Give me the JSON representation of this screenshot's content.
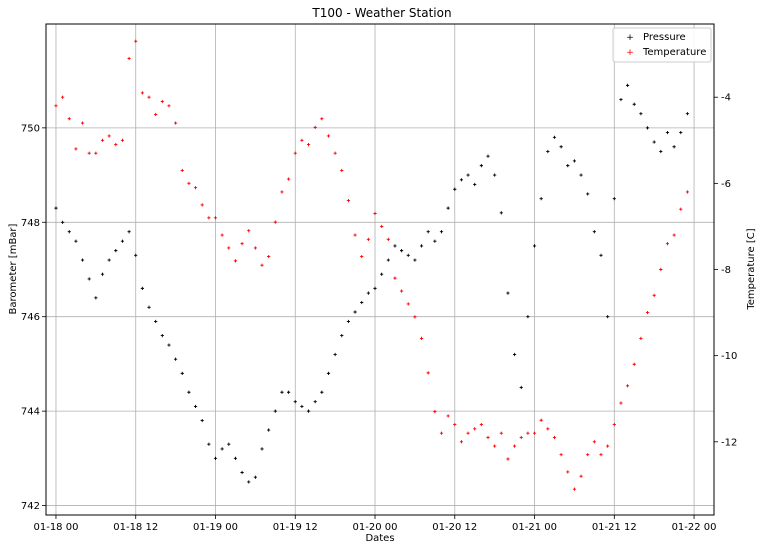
{
  "chart_data": {
    "type": "scatter",
    "title": "T100 - Weather Station",
    "xlabel": "Dates",
    "ylabel": "Barometer [mBar]",
    "ylabel_right": "Temperature [C]",
    "x_ticks": [
      "01-18 00",
      "01-18 12",
      "01-19 00",
      "01-19 12",
      "01-20 00",
      "01-20 12",
      "01-21 00",
      "01-21 12",
      "01-22 00"
    ],
    "xlim": [
      "01-17 22:30",
      "01-22 03:00"
    ],
    "ylim": [
      741.8,
      752.2
    ],
    "ylim_right": [
      -13.7,
      -2.3
    ],
    "y_ticks": [
      742,
      744,
      746,
      748,
      750
    ],
    "y_ticks_right": [
      -12,
      -10,
      -8,
      -6,
      -4
    ],
    "grid": true,
    "legend_position": "top-right",
    "series": [
      {
        "name": "Pressure",
        "axis": "left",
        "color": "#000000",
        "marker": "+",
        "points": [
          [
            "01-18 00:00",
            748.3
          ],
          [
            "01-18 01:00",
            748.0
          ],
          [
            "01-18 02:00",
            747.8
          ],
          [
            "01-18 03:00",
            747.6
          ],
          [
            "01-18 04:00",
            747.2
          ],
          [
            "01-18 05:00",
            746.8
          ],
          [
            "01-18 06:00",
            746.4
          ],
          [
            "01-18 07:00",
            746.9
          ],
          [
            "01-18 08:00",
            747.2
          ],
          [
            "01-18 09:00",
            747.4
          ],
          [
            "01-18 10:00",
            747.6
          ],
          [
            "01-18 11:00",
            747.8
          ],
          [
            "01-18 12:00",
            747.3
          ],
          [
            "01-18 13:00",
            746.6
          ],
          [
            "01-18 14:00",
            746.2
          ],
          [
            "01-18 15:00",
            745.9
          ],
          [
            "01-18 16:00",
            745.6
          ],
          [
            "01-18 17:00",
            745.4
          ],
          [
            "01-18 18:00",
            745.1
          ],
          [
            "01-18 19:00",
            744.8
          ],
          [
            "01-18 20:00",
            744.4
          ],
          [
            "01-18 21:00",
            744.1
          ],
          [
            "01-18 22:00",
            743.8
          ],
          [
            "01-18 23:00",
            743.3
          ],
          [
            "01-19 00:00",
            743.0
          ],
          [
            "01-19 01:00",
            743.2
          ],
          [
            "01-19 02:00",
            743.3
          ],
          [
            "01-19 03:00",
            743.0
          ],
          [
            "01-19 04:00",
            742.7
          ],
          [
            "01-19 05:00",
            742.5
          ],
          [
            "01-19 06:00",
            742.6
          ],
          [
            "01-19 07:00",
            743.2
          ],
          [
            "01-19 08:00",
            743.6
          ],
          [
            "01-19 09:00",
            744.0
          ],
          [
            "01-19 10:00",
            744.4
          ],
          [
            "01-19 11:00",
            744.4
          ],
          [
            "01-19 12:00",
            744.2
          ],
          [
            "01-19 13:00",
            744.1
          ],
          [
            "01-19 14:00",
            744.0
          ],
          [
            "01-19 15:00",
            744.2
          ],
          [
            "01-19 16:00",
            744.4
          ],
          [
            "01-19 17:00",
            744.8
          ],
          [
            "01-19 18:00",
            745.2
          ],
          [
            "01-19 19:00",
            745.6
          ],
          [
            "01-19 20:00",
            745.9
          ],
          [
            "01-19 21:00",
            746.1
          ],
          [
            "01-19 22:00",
            746.3
          ],
          [
            "01-19 23:00",
            746.5
          ],
          [
            "01-20 00:00",
            746.6
          ],
          [
            "01-20 01:00",
            746.9
          ],
          [
            "01-20 02:00",
            747.2
          ],
          [
            "01-20 03:00",
            747.5
          ],
          [
            "01-20 04:00",
            747.4
          ],
          [
            "01-20 05:00",
            747.3
          ],
          [
            "01-20 06:00",
            747.2
          ],
          [
            "01-20 07:00",
            747.5
          ],
          [
            "01-20 08:00",
            747.8
          ],
          [
            "01-20 09:00",
            747.6
          ],
          [
            "01-20 10:00",
            747.8
          ],
          [
            "01-20 11:00",
            748.3
          ],
          [
            "01-20 12:00",
            748.7
          ],
          [
            "01-20 13:00",
            748.9
          ],
          [
            "01-20 14:00",
            749.0
          ],
          [
            "01-20 15:00",
            748.8
          ],
          [
            "01-20 16:00",
            749.2
          ],
          [
            "01-20 17:00",
            749.4
          ],
          [
            "01-20 18:00",
            749.0
          ],
          [
            "01-20 19:00",
            748.2
          ],
          [
            "01-20 20:00",
            746.5
          ],
          [
            "01-20 21:00",
            745.2
          ],
          [
            "01-20 22:00",
            744.5
          ],
          [
            "01-20 23:00",
            746.0
          ],
          [
            "01-21 00:00",
            747.5
          ],
          [
            "01-21 01:00",
            748.5
          ],
          [
            "01-21 02:00",
            749.5
          ],
          [
            "01-21 03:00",
            749.8
          ],
          [
            "01-21 04:00",
            749.6
          ],
          [
            "01-21 05:00",
            749.2
          ],
          [
            "01-21 06:00",
            749.3
          ],
          [
            "01-21 07:00",
            749.0
          ],
          [
            "01-21 08:00",
            748.6
          ],
          [
            "01-21 09:00",
            747.8
          ],
          [
            "01-21 10:00",
            747.3
          ],
          [
            "01-21 11:00",
            746.0
          ],
          [
            "01-21 12:00",
            748.5
          ],
          [
            "01-21 13:00",
            750.6
          ],
          [
            "01-21 14:00",
            750.9
          ],
          [
            "01-21 15:00",
            750.5
          ],
          [
            "01-21 16:00",
            750.3
          ],
          [
            "01-21 17:00",
            750.0
          ],
          [
            "01-21 18:00",
            749.7
          ],
          [
            "01-21 19:00",
            749.5
          ],
          [
            "01-21 20:00",
            749.9
          ],
          [
            "01-21 21:00",
            749.6
          ],
          [
            "01-21 22:00",
            749.9
          ],
          [
            "01-21 23:00",
            750.3
          ]
        ]
      },
      {
        "name": "Temperature",
        "axis": "right",
        "color": "#ff0000",
        "marker": "+",
        "points": [
          [
            "01-18 00:00",
            -4.2
          ],
          [
            "01-18 01:00",
            -4.0
          ],
          [
            "01-18 02:00",
            -4.5
          ],
          [
            "01-18 03:00",
            -5.2
          ],
          [
            "01-18 04:00",
            -4.6
          ],
          [
            "01-18 05:00",
            -5.3
          ],
          [
            "01-18 06:00",
            -5.3
          ],
          [
            "01-18 07:00",
            -5.0
          ],
          [
            "01-18 08:00",
            -4.9
          ],
          [
            "01-18 09:00",
            -5.1
          ],
          [
            "01-18 10:00",
            -5.0
          ],
          [
            "01-18 11:00",
            -3.1
          ],
          [
            "01-18 12:00",
            -2.7
          ],
          [
            "01-18 13:00",
            -3.9
          ],
          [
            "01-18 14:00",
            -4.0
          ],
          [
            "01-18 15:00",
            -4.4
          ],
          [
            "01-18 16:00",
            -4.1
          ],
          [
            "01-18 17:00",
            -4.2
          ],
          [
            "01-18 18:00",
            -4.6
          ],
          [
            "01-18 19:00",
            -5.7
          ],
          [
            "01-18 20:00",
            -6.0
          ],
          [
            "01-18 21:00",
            -6.1
          ],
          [
            "01-18 22:00",
            -6.5
          ],
          [
            "01-18 23:00",
            -6.8
          ],
          [
            "01-19 00:00",
            -6.8
          ],
          [
            "01-19 01:00",
            -7.2
          ],
          [
            "01-19 02:00",
            -7.5
          ],
          [
            "01-19 03:00",
            -7.8
          ],
          [
            "01-19 04:00",
            -7.4
          ],
          [
            "01-19 05:00",
            -7.1
          ],
          [
            "01-19 06:00",
            -7.5
          ],
          [
            "01-19 07:00",
            -7.9
          ],
          [
            "01-19 08:00",
            -7.7
          ],
          [
            "01-19 09:00",
            -6.9
          ],
          [
            "01-19 10:00",
            -6.2
          ],
          [
            "01-19 11:00",
            -5.9
          ],
          [
            "01-19 12:00",
            -5.3
          ],
          [
            "01-19 13:00",
            -5.0
          ],
          [
            "01-19 14:00",
            -5.1
          ],
          [
            "01-19 15:00",
            -4.7
          ],
          [
            "01-19 16:00",
            -4.5
          ],
          [
            "01-19 17:00",
            -4.9
          ],
          [
            "01-19 18:00",
            -5.3
          ],
          [
            "01-19 19:00",
            -5.7
          ],
          [
            "01-19 20:00",
            -6.4
          ],
          [
            "01-19 21:00",
            -7.2
          ],
          [
            "01-19 22:00",
            -7.7
          ],
          [
            "01-19 23:00",
            -7.3
          ],
          [
            "01-20 00:00",
            -6.7
          ],
          [
            "01-20 01:00",
            -7.0
          ],
          [
            "01-20 02:00",
            -7.3
          ],
          [
            "01-20 03:00",
            -8.2
          ],
          [
            "01-20 04:00",
            -8.5
          ],
          [
            "01-20 05:00",
            -8.8
          ],
          [
            "01-20 06:00",
            -9.1
          ],
          [
            "01-20 07:00",
            -9.6
          ],
          [
            "01-20 08:00",
            -10.4
          ],
          [
            "01-20 09:00",
            -11.3
          ],
          [
            "01-20 10:00",
            -11.8
          ],
          [
            "01-20 11:00",
            -11.4
          ],
          [
            "01-20 12:00",
            -11.6
          ],
          [
            "01-20 13:00",
            -12.0
          ],
          [
            "01-20 14:00",
            -11.8
          ],
          [
            "01-20 15:00",
            -11.7
          ],
          [
            "01-20 16:00",
            -11.6
          ],
          [
            "01-20 17:00",
            -11.9
          ],
          [
            "01-20 18:00",
            -12.1
          ],
          [
            "01-20 19:00",
            -11.8
          ],
          [
            "01-20 20:00",
            -12.4
          ],
          [
            "01-20 21:00",
            -12.1
          ],
          [
            "01-20 22:00",
            -11.9
          ],
          [
            "01-20 23:00",
            -11.8
          ],
          [
            "01-21 00:00",
            -11.8
          ],
          [
            "01-21 01:00",
            -11.5
          ],
          [
            "01-21 02:00",
            -11.7
          ],
          [
            "01-21 03:00",
            -11.9
          ],
          [
            "01-21 04:00",
            -12.3
          ],
          [
            "01-21 05:00",
            -12.7
          ],
          [
            "01-21 06:00",
            -13.1
          ],
          [
            "01-21 07:00",
            -12.8
          ],
          [
            "01-21 08:00",
            -12.3
          ],
          [
            "01-21 09:00",
            -12.0
          ],
          [
            "01-21 10:00",
            -12.3
          ],
          [
            "01-21 11:00",
            -12.1
          ],
          [
            "01-21 12:00",
            -11.6
          ],
          [
            "01-21 13:00",
            -11.1
          ],
          [
            "01-21 14:00",
            -10.7
          ],
          [
            "01-21 15:00",
            -10.2
          ],
          [
            "01-21 16:00",
            -9.6
          ],
          [
            "01-21 17:00",
            -9.0
          ],
          [
            "01-21 18:00",
            -8.6
          ],
          [
            "01-21 19:00",
            -8.0
          ],
          [
            "01-21 20:00",
            -7.4
          ],
          [
            "01-21 21:00",
            -7.2
          ],
          [
            "01-21 22:00",
            -6.6
          ],
          [
            "01-21 23:00",
            -6.2
          ]
        ]
      }
    ]
  }
}
